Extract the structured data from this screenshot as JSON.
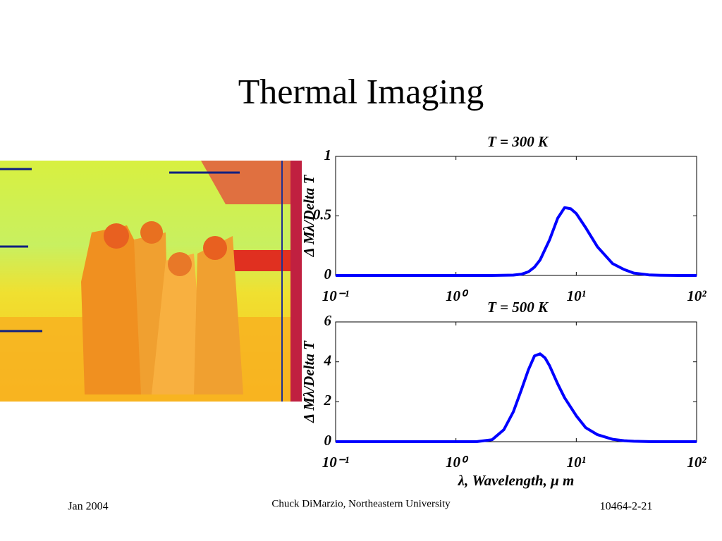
{
  "title": "Thermal Imaging",
  "footer": {
    "left": "Jan 2004",
    "center": "Chuck DiMarzio, Northeastern University",
    "right": "10464-2-21"
  },
  "chart_data": [
    {
      "type": "line",
      "title": "T = 300 K",
      "ylabel": "Δ Mλ/Delta T",
      "xscale": "log",
      "xlim": [
        0.1,
        100
      ],
      "ylim": [
        0,
        1
      ],
      "xticks": [
        {
          "value": 0.1,
          "label": "10⁻¹"
        },
        {
          "value": 1,
          "label": "10⁰"
        },
        {
          "value": 10,
          "label": "10¹"
        },
        {
          "value": 100,
          "label": "10²"
        }
      ],
      "yticks": [
        0,
        0.5,
        1
      ],
      "x": [
        0.1,
        1,
        2,
        3,
        3.5,
        4,
        4.5,
        5,
        6,
        7,
        8,
        9,
        10,
        12,
        15,
        20,
        25,
        30,
        40,
        50,
        70,
        100
      ],
      "series": [
        {
          "color": "#0000ff",
          "values": [
            0,
            0,
            0,
            0.003,
            0.01,
            0.03,
            0.07,
            0.13,
            0.3,
            0.48,
            0.57,
            0.56,
            0.52,
            0.4,
            0.24,
            0.1,
            0.05,
            0.02,
            0.005,
            0.002,
            0,
            0
          ]
        }
      ]
    },
    {
      "type": "line",
      "title": "T = 500 K",
      "ylabel": "Δ Mλ/Delta T",
      "xlabel": "λ, Wavelength, μ m",
      "xscale": "log",
      "xlim": [
        0.1,
        100
      ],
      "ylim": [
        0,
        6
      ],
      "xticks": [
        {
          "value": 0.1,
          "label": "10⁻¹"
        },
        {
          "value": 1,
          "label": "10⁰"
        },
        {
          "value": 10,
          "label": "10¹"
        },
        {
          "value": 100,
          "label": "10²"
        }
      ],
      "yticks": [
        0,
        2,
        4,
        6
      ],
      "x": [
        0.1,
        1,
        1.5,
        2,
        2.5,
        3,
        3.5,
        4,
        4.5,
        5,
        5.5,
        6,
        7,
        8,
        10,
        12,
        15,
        20,
        25,
        30,
        40,
        50,
        100
      ],
      "series": [
        {
          "color": "#0000ff",
          "values": [
            0,
            0,
            0.005,
            0.1,
            0.6,
            1.5,
            2.6,
            3.6,
            4.3,
            4.4,
            4.2,
            3.8,
            2.9,
            2.2,
            1.3,
            0.7,
            0.35,
            0.12,
            0.05,
            0.02,
            0.005,
            0,
            0
          ]
        }
      ]
    }
  ]
}
